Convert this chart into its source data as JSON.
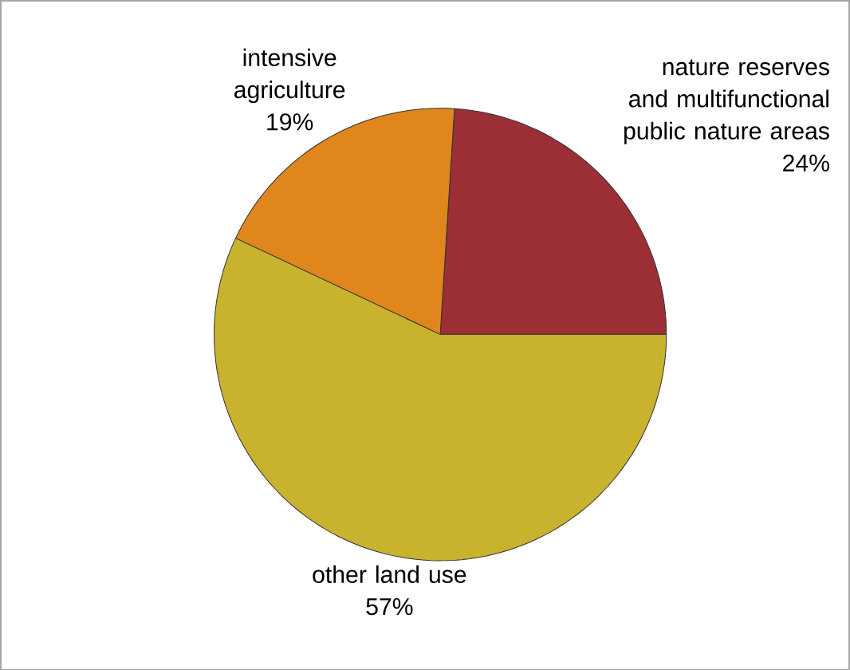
{
  "chart_data": {
    "type": "pie",
    "categories": [
      "nature reserves and multifunctional public nature areas",
      "intensive agriculture",
      "other land use"
    ],
    "values": [
      24,
      19,
      57
    ],
    "value_labels": [
      "24%",
      "19%",
      "57%"
    ],
    "colors": [
      "#9b2f35",
      "#e0861c",
      "#c8b22e"
    ]
  }
}
